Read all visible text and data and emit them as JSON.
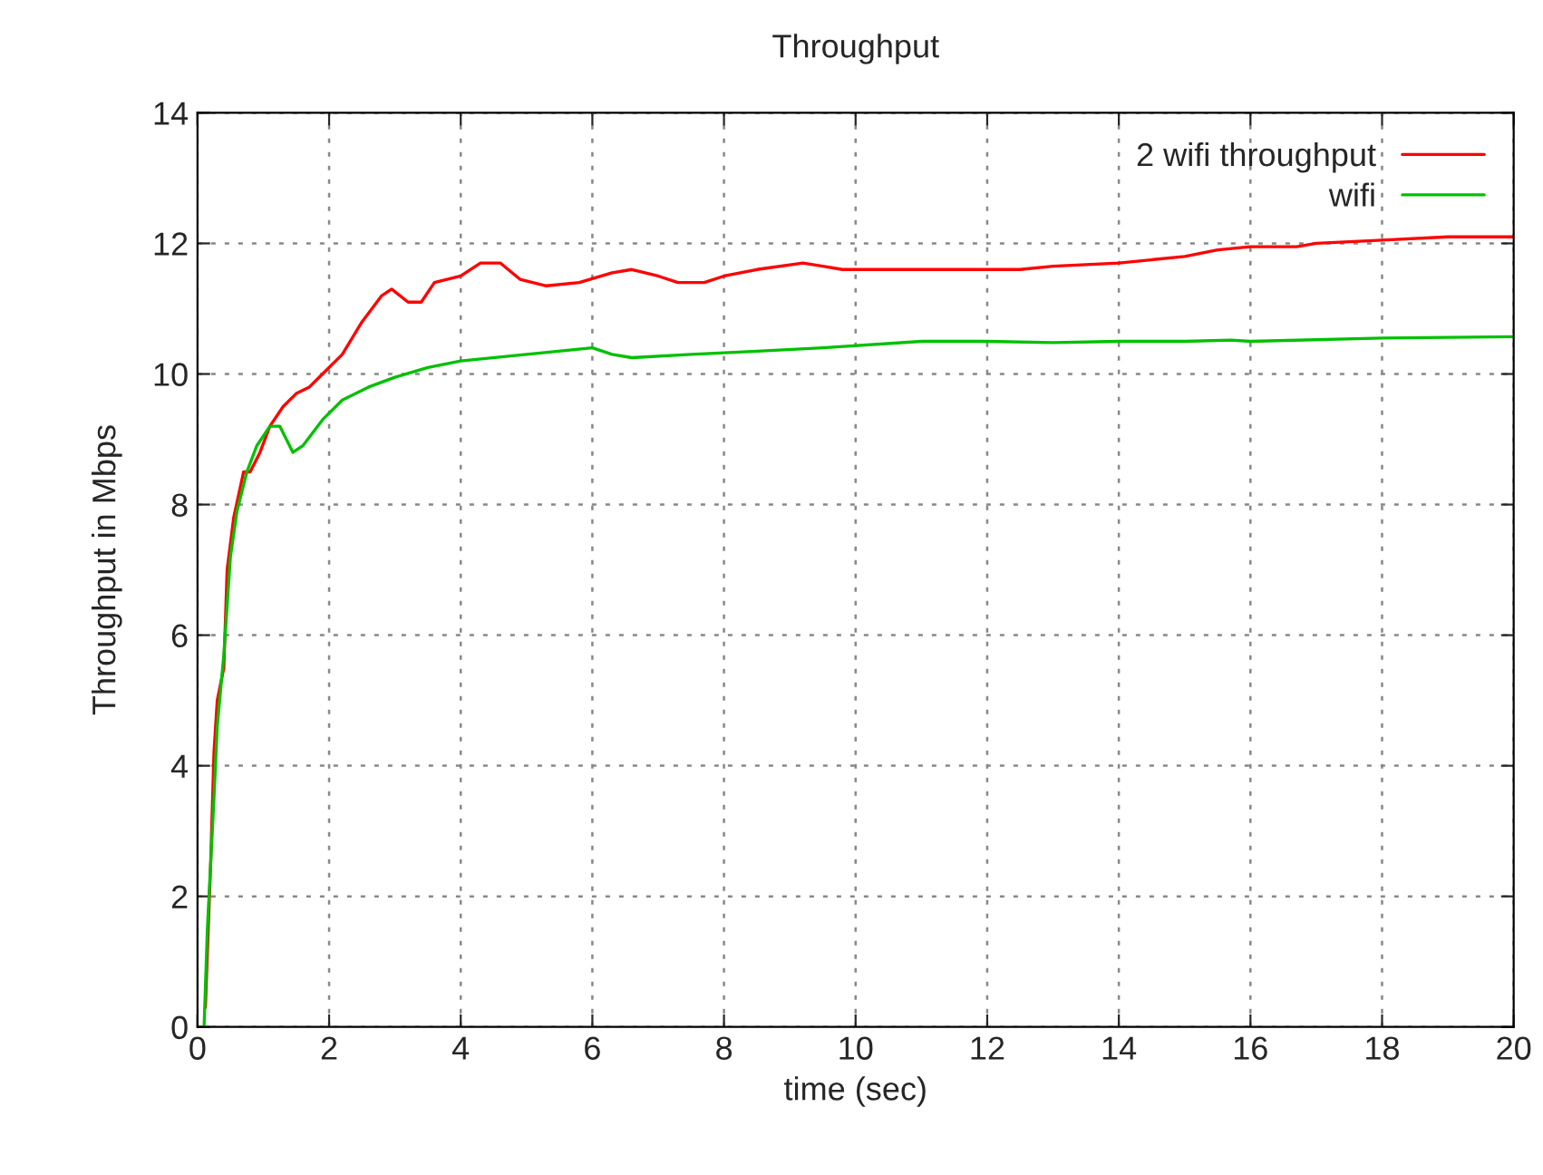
{
  "chart_data": {
    "type": "line",
    "title": "Throughput",
    "xlabel": "time (sec)",
    "ylabel": "Throughput in Mbps",
    "xlim": [
      0,
      20
    ],
    "xticks": [
      0,
      2,
      4,
      6,
      8,
      10,
      12,
      14,
      16,
      18,
      20
    ],
    "ylim": [
      0,
      14
    ],
    "yticks": [
      0,
      2,
      4,
      6,
      8,
      10,
      12,
      14
    ],
    "grid": true,
    "legend": "top right",
    "line_style": "solid",
    "series": [
      {
        "name": "2 wifi throughput",
        "color": "#ff0000",
        "x": [
          0.12,
          0.2,
          0.25,
          0.3,
          0.4,
          0.45,
          0.55,
          0.7,
          0.8,
          0.95,
          1.1,
          1.3,
          1.5,
          1.7,
          1.9,
          2.2,
          2.5,
          2.8,
          2.95,
          3.2,
          3.4,
          3.6,
          4.0,
          4.3,
          4.6,
          4.9,
          5.3,
          5.8,
          6.3,
          6.6,
          7.0,
          7.3,
          7.7,
          8.0,
          8.5,
          9.2,
          9.5,
          9.8,
          10.5,
          11,
          12.5,
          13,
          14,
          15,
          15.5,
          16,
          16.7,
          17,
          18,
          19,
          20
        ],
        "values": [
          0.3,
          2.5,
          4.2,
          5.0,
          5.5,
          7.0,
          7.8,
          8.5,
          8.5,
          8.8,
          9.2,
          9.5,
          9.7,
          9.8,
          10.0,
          10.3,
          10.8,
          11.2,
          11.3,
          11.1,
          11.1,
          11.4,
          11.5,
          11.7,
          11.7,
          11.45,
          11.35,
          11.4,
          11.55,
          11.6,
          11.5,
          11.4,
          11.4,
          11.5,
          11.6,
          11.7,
          11.65,
          11.6,
          11.6,
          11.6,
          11.6,
          11.65,
          11.7,
          11.8,
          11.9,
          11.95,
          11.95,
          12.0,
          12.05,
          12.1,
          12.1
        ]
      },
      {
        "name": "wifi",
        "color": "#00c000",
        "x": [
          0.1,
          0.15,
          0.25,
          0.3,
          0.4,
          0.5,
          0.6,
          0.75,
          0.9,
          1.1,
          1.25,
          1.35,
          1.45,
          1.6,
          1.9,
          2.2,
          2.6,
          3.0,
          3.5,
          4.0,
          5.0,
          6.0,
          6.3,
          6.6,
          7.5,
          8.5,
          9.5,
          11,
          12,
          13,
          14,
          15,
          15.7,
          16,
          18,
          20
        ],
        "values": [
          0.0,
          1.5,
          3.5,
          4.6,
          5.7,
          7.2,
          7.9,
          8.5,
          8.9,
          9.2,
          9.2,
          9.0,
          8.8,
          8.9,
          9.3,
          9.6,
          9.8,
          9.95,
          10.1,
          10.2,
          10.3,
          10.4,
          10.3,
          10.25,
          10.3,
          10.35,
          10.4,
          10.5,
          10.5,
          10.48,
          10.5,
          10.5,
          10.52,
          10.5,
          10.55,
          10.57
        ]
      }
    ]
  }
}
